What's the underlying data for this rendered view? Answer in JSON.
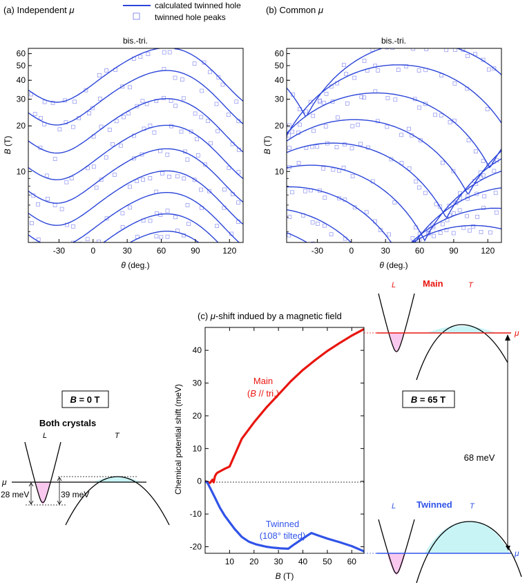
{
  "legend": {
    "line_label": "calculated twinned hole",
    "marker_label": "twinned hole peaks",
    "line_color": "#2a44d8",
    "marker_color": "#8a8ff0"
  },
  "panel_a": {
    "label": "(a) Independent",
    "mu": "μ",
    "subtitle": "bis.-tri."
  },
  "panel_b": {
    "label": "(b) Common",
    "mu": "μ",
    "subtitle": "bis.-tri."
  },
  "panel_c": {
    "label_mu": "μ",
    "label": "-shift indued by a magnetic field"
  },
  "axes_ab": {
    "y_sym": "B",
    "y_unit": "(T)",
    "x_sym": "θ",
    "x_unit": "(deg.)",
    "yticks": [
      "60",
      "50",
      "40",
      "30",
      "20",
      "10"
    ],
    "xticks": [
      "-30",
      "0",
      "30",
      "60",
      "90",
      "120"
    ]
  },
  "chart_data": [
    {
      "type": "line",
      "title": "bis.-tri.",
      "panel": "a",
      "xlabel": "θ (deg.)",
      "ylabel": "B (T)",
      "xlim": [
        -57,
        132
      ],
      "ylim": [
        3.4,
        65
      ],
      "yscale": "log",
      "series": [
        {
          "name": "calculated twinned hole",
          "family": "independent",
          "fields": [
            65,
            46,
            30,
            20,
            14,
            10,
            7.2,
            5.2,
            4.0
          ]
        }
      ]
    },
    {
      "type": "line",
      "title": "bis.-tri.",
      "panel": "b",
      "xlabel": "θ (deg.)",
      "ylabel": "B (T)",
      "xlim": [
        -57,
        132
      ],
      "ylim": [
        3.4,
        65
      ],
      "yscale": "log",
      "series": [
        {
          "name": "calculated twinned hole",
          "family": "common",
          "fields": [
            65,
            46,
            30,
            20,
            14,
            10,
            7.2,
            5.2,
            4.0
          ]
        }
      ]
    },
    {
      "type": "line",
      "title": "μ-shift indued by a magnetic field",
      "panel": "c",
      "xlabel": "B (T)",
      "ylabel": "Chemical potential shift (meV)",
      "xlim": [
        0,
        65
      ],
      "ylim": [
        -22,
        47
      ],
      "xticks": [
        10,
        20,
        30,
        40,
        50,
        60
      ],
      "yticks": [
        -20,
        -10,
        0,
        10,
        20,
        30,
        40
      ],
      "series": [
        {
          "name": "Main (B // tri.)",
          "color": "#e8150e",
          "x": [
            0,
            2,
            3,
            3.5,
            4,
            4.5,
            5,
            6,
            8,
            10,
            15,
            20,
            25,
            30,
            35,
            40,
            45,
            50,
            55,
            60,
            65
          ],
          "y": [
            0,
            -0.5,
            0.5,
            -0.3,
            1.5,
            2.2,
            2.6,
            3,
            3.8,
            4.5,
            13,
            18,
            22.5,
            26.5,
            30.5,
            34,
            37,
            39.8,
            42.2,
            44.5,
            46.5
          ]
        },
        {
          "name": "Twinned (108° tilted)",
          "color": "#3053e8",
          "x": [
            0,
            1,
            2,
            4,
            6,
            8,
            10,
            12,
            15,
            18,
            21,
            25,
            28,
            31,
            34,
            36,
            39,
            42,
            43.5,
            46,
            50,
            55,
            60,
            65
          ],
          "y": [
            0,
            -0.5,
            -2,
            -5,
            -8,
            -10.5,
            -12.5,
            -14.5,
            -17,
            -18.5,
            -19.3,
            -20,
            -20.3,
            -20.5,
            -20.6,
            -19.5,
            -18,
            -16.5,
            -15.8,
            -16.5,
            -17.5,
            -18.6,
            -19.8,
            -21.4
          ]
        }
      ]
    }
  ],
  "axes_c": {
    "ylabel": "Chemical potential shift (meV)",
    "x_sym": "B",
    "x_unit": "(T)",
    "yticks": [
      "40",
      "30",
      "20",
      "10",
      "0",
      "-10",
      "-20"
    ],
    "xticks": [
      "10",
      "20",
      "30",
      "40",
      "50",
      "60"
    ]
  },
  "annot_c": {
    "main": "Main",
    "main_sub_open": "(",
    "main_sub_B": "B",
    "main_sub_rest": " // tri.)",
    "twinned": "Twinned",
    "twinned_sub": "(108° tilted)"
  },
  "left_diagram": {
    "box_label_B": "B",
    "box_label_rest": " = 0 T",
    "caption": "Both crystals",
    "L": "L",
    "T": "T",
    "mu": "μ",
    "depth_left": "28 meV",
    "depth_right": "39 meV"
  },
  "right_diagram": {
    "box_label_B": "B",
    "box_label_rest": " = 65 T",
    "main_label": "Main",
    "twinned_label": "Twinned",
    "L": "L",
    "T": "T",
    "mu": "μ",
    "gap": "68 meV"
  }
}
